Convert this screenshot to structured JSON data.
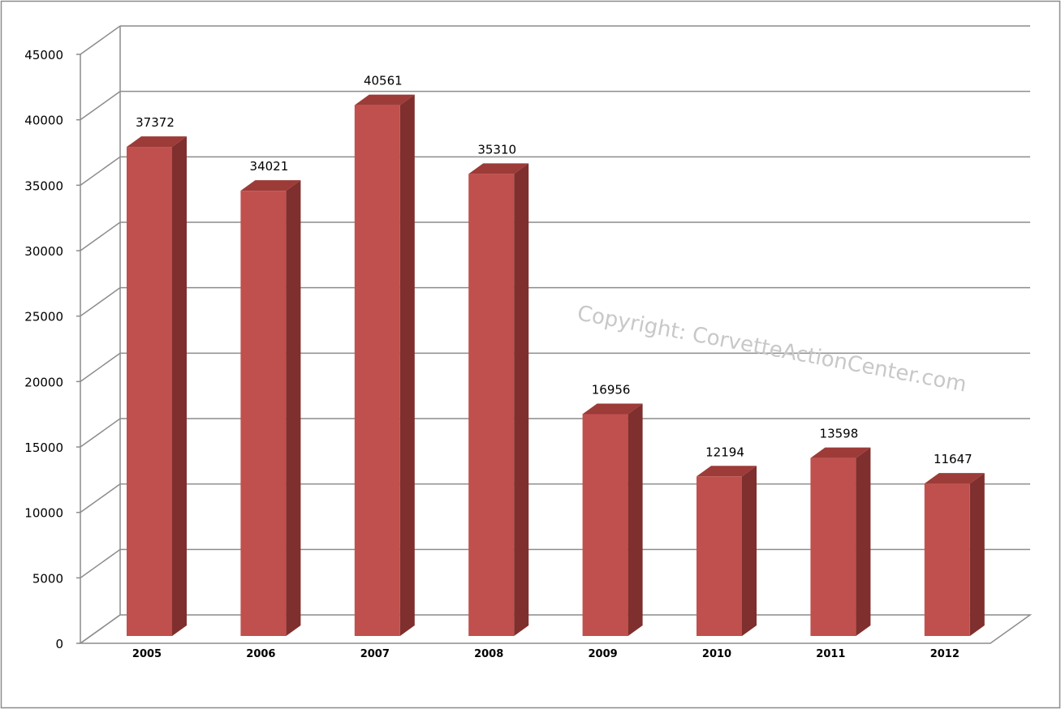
{
  "chart_data": {
    "type": "bar",
    "categories": [
      "2005",
      "2006",
      "2007",
      "2008",
      "2009",
      "2010",
      "2011",
      "2012"
    ],
    "values": [
      37372,
      34021,
      40561,
      35310,
      16956,
      12194,
      13598,
      11647
    ],
    "data_labels": [
      "37372",
      "34021",
      "40561",
      "35310",
      "16956",
      "12194",
      "13598",
      "11647"
    ],
    "yticks": [
      "0",
      "5000",
      "10000",
      "15000",
      "20000",
      "25000",
      "30000",
      "35000",
      "40000",
      "45000"
    ],
    "ylim": [
      0,
      45000
    ],
    "grid": true,
    "three_d": true,
    "bar_color": "#c0504d",
    "bar_top_color": "#9c3b38",
    "bar_side_color": "#7f2f2d",
    "title": "",
    "xlabel": "",
    "ylabel": "",
    "legend": "none"
  },
  "watermark": "Copyright:  CorvetteActionCenter.com"
}
